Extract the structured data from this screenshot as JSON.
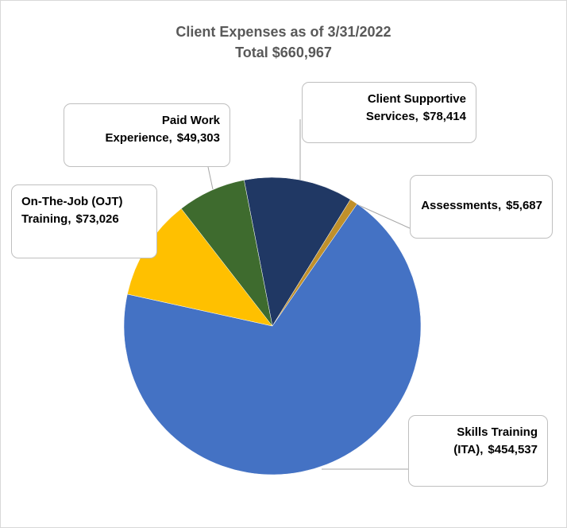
{
  "chart_data": {
    "type": "pie",
    "title": "Client Expenses as of 3/31/2022",
    "subtitle": "Total $660,967",
    "categories": [
      "Client Supportive Services",
      "Assessments",
      "Skills Training (ITA)",
      "On-The-Job (OJT) Training",
      "Paid Work Experience"
    ],
    "values": [
      78414,
      5687,
      454537,
      73026,
      49303
    ],
    "value_labels": [
      "$78,414",
      "$5,687",
      "$454,537",
      "$73,026",
      "$49,303"
    ],
    "colors": [
      "#203864",
      "#c0902b",
      "#4472c4",
      "#ffc000",
      "#3e6b2e"
    ]
  }
}
